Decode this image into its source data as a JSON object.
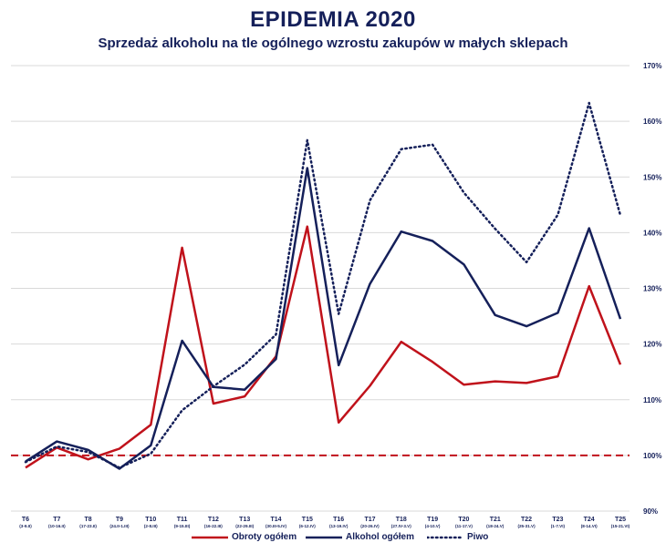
{
  "chart_data": {
    "type": "line",
    "title": "EPIDEMIA 2020",
    "subtitle": "Sprzedaż alkoholu na tle ogólnego wzrostu zakupów w małych sklepach",
    "categories": [
      {
        "week": "T6",
        "dates": "(3-9.II)"
      },
      {
        "week": "T7",
        "dates": "(10-16.II)"
      },
      {
        "week": "T8",
        "dates": "(17-23.II)"
      },
      {
        "week": "T9",
        "dates": "(24.II-1.III)"
      },
      {
        "week": "T10",
        "dates": "(2-8.III)"
      },
      {
        "week": "T11",
        "dates": "(9-15.III)"
      },
      {
        "week": "T12",
        "dates": "(16-22.III)"
      },
      {
        "week": "T13",
        "dates": "(22-29.III)"
      },
      {
        "week": "T14",
        "dates": "(30.III-5.IV)"
      },
      {
        "week": "T15",
        "dates": "(6-12.IV)"
      },
      {
        "week": "T16",
        "dates": "(13-19.IV)"
      },
      {
        "week": "T17",
        "dates": "(20-26.IV)"
      },
      {
        "week": "T18",
        "dates": "(27.IV-3.V)"
      },
      {
        "week": "T19",
        "dates": "(4-10.V)"
      },
      {
        "week": "T20",
        "dates": "(11-17.V)"
      },
      {
        "week": "T21",
        "dates": "(18-24.V)"
      },
      {
        "week": "T22",
        "dates": "(25-31.V)"
      },
      {
        "week": "T23",
        "dates": "(1-7.VI)"
      },
      {
        "week": "T24",
        "dates": "(8-14.VI)"
      },
      {
        "week": "T25",
        "dates": "(15-21.VI)"
      }
    ],
    "series": [
      {
        "name": "Obroty ogółem",
        "color": "#c0121b",
        "style": "solid",
        "values": [
          97.8,
          101.4,
          99.3,
          101.2,
          105.5,
          137.3,
          109.3,
          110.6,
          117.8,
          141.1,
          105.9,
          112.5,
          120.4,
          116.8,
          112.7,
          113.3,
          113.0,
          114.2,
          130.4,
          116.3
        ]
      },
      {
        "name": "Alkohol ogółem",
        "color": "#15205a",
        "style": "solid",
        "values": [
          98.9,
          102.5,
          101.0,
          97.6,
          101.8,
          120.6,
          112.3,
          111.8,
          117.3,
          151.6,
          116.2,
          130.8,
          140.2,
          138.5,
          134.3,
          125.2,
          123.2,
          125.6,
          140.8,
          124.5
        ]
      },
      {
        "name": "Piwo",
        "color": "#15205a",
        "style": "dotted",
        "values": [
          98.8,
          101.6,
          100.6,
          97.8,
          100.3,
          108.1,
          112.4,
          116.3,
          121.7,
          156.6,
          125.4,
          145.8,
          155.0,
          155.8,
          147.2,
          140.7,
          134.7,
          143.2,
          163.3,
          143.1
        ]
      }
    ],
    "reference_line": {
      "value": 100,
      "color": "#c0121b",
      "style": "dashed"
    },
    "y_ticks": [
      "90%",
      "100%",
      "110%",
      "120%",
      "130%",
      "140%",
      "150%",
      "160%",
      "170%"
    ],
    "ylim": [
      90,
      170
    ],
    "y_axis_side": "right",
    "grid": true,
    "legend_position": "bottom"
  }
}
